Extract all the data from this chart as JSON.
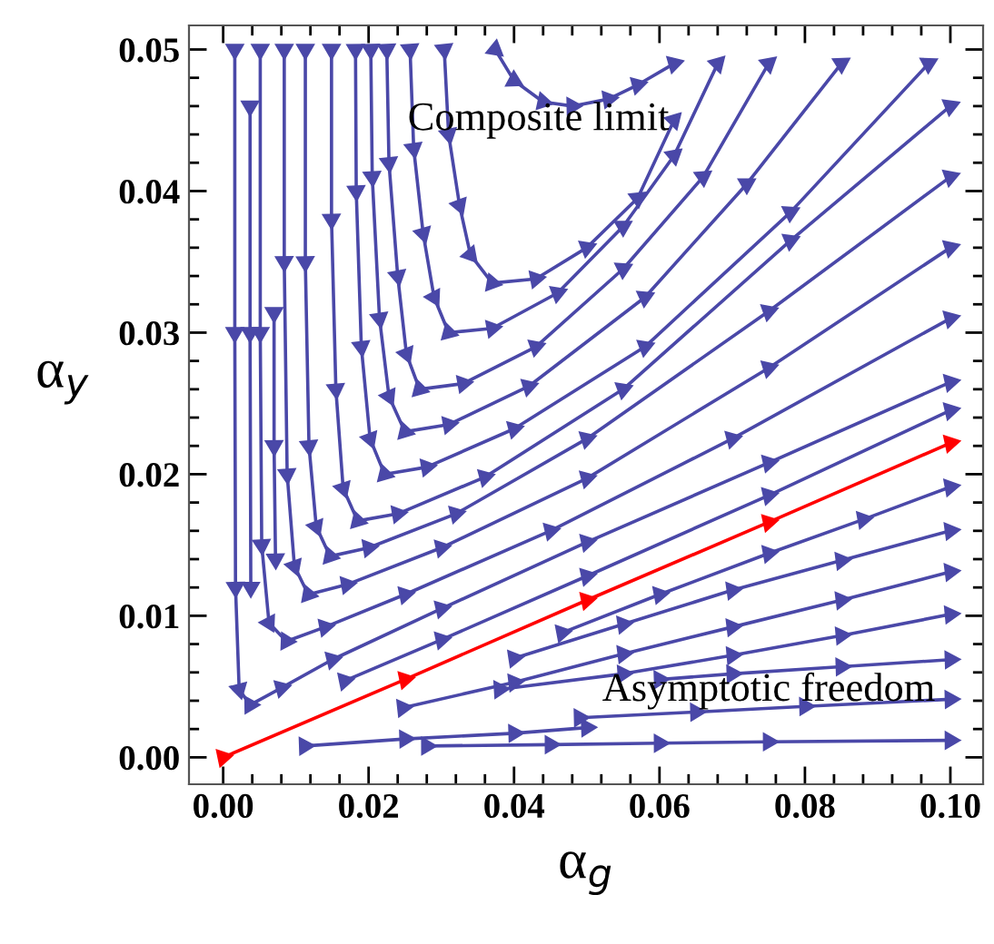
{
  "chart_data": {
    "type": "line",
    "xlabel": "α$_{g}$",
    "ylabel": "α$_{y}$",
    "grid": false,
    "marker": "triangle",
    "xlim": [
      -0.0047,
      0.1045
    ],
    "ylim": [
      -0.0019,
      0.0517
    ],
    "xticks": [
      {
        "value": 0,
        "label": "0.00"
      },
      {
        "value": 0.004,
        "label": null
      },
      {
        "value": 0.008,
        "label": null
      },
      {
        "value": 0.012,
        "label": null
      },
      {
        "value": 0.016,
        "label": null
      },
      {
        "value": 0.02,
        "label": "0.02"
      },
      {
        "value": 0.024,
        "label": null
      },
      {
        "value": 0.028,
        "label": null
      },
      {
        "value": 0.032,
        "label": null
      },
      {
        "value": 0.036,
        "label": null
      },
      {
        "value": 0.04,
        "label": "0.04"
      },
      {
        "value": 0.044,
        "label": null
      },
      {
        "value": 0.048,
        "label": null
      },
      {
        "value": 0.052,
        "label": null
      },
      {
        "value": 0.056,
        "label": null
      },
      {
        "value": 0.06,
        "label": "0.06"
      },
      {
        "value": 0.064,
        "label": null
      },
      {
        "value": 0.068,
        "label": null
      },
      {
        "value": 0.072,
        "label": null
      },
      {
        "value": 0.076,
        "label": null
      },
      {
        "value": 0.08,
        "label": "0.08"
      },
      {
        "value": 0.084,
        "label": null
      },
      {
        "value": 0.088,
        "label": null
      },
      {
        "value": 0.092,
        "label": null
      },
      {
        "value": 0.096,
        "label": null
      },
      {
        "value": 0.1,
        "label": "0.10"
      }
    ],
    "yticks": [
      {
        "value": 0,
        "label": "0.00"
      },
      {
        "value": 0.002,
        "label": null
      },
      {
        "value": 0.004,
        "label": null
      },
      {
        "value": 0.006,
        "label": null
      },
      {
        "value": 0.008,
        "label": null
      },
      {
        "value": 0.01,
        "label": "0.01"
      },
      {
        "value": 0.012,
        "label": null
      },
      {
        "value": 0.014,
        "label": null
      },
      {
        "value": 0.016,
        "label": null
      },
      {
        "value": 0.018,
        "label": null
      },
      {
        "value": 0.02,
        "label": "0.02"
      },
      {
        "value": 0.022,
        "label": null
      },
      {
        "value": 0.024,
        "label": null
      },
      {
        "value": 0.026,
        "label": null
      },
      {
        "value": 0.028,
        "label": null
      },
      {
        "value": 0.03,
        "label": "0.03"
      },
      {
        "value": 0.032,
        "label": null
      },
      {
        "value": 0.034,
        "label": null
      },
      {
        "value": 0.036,
        "label": null
      },
      {
        "value": 0.038,
        "label": null
      },
      {
        "value": 0.04,
        "label": "0.04"
      },
      {
        "value": 0.042,
        "label": null
      },
      {
        "value": 0.044,
        "label": null
      },
      {
        "value": 0.046,
        "label": null
      },
      {
        "value": 0.048,
        "label": null
      },
      {
        "value": 0.05,
        "label": "0.05"
      }
    ],
    "annotations": [
      "Composite limit",
      "Asymptotic freedom"
    ],
    "series": [
      {
        "color": "#4a48a8",
        "x": [
          0.0016,
          0.0016,
          0.0017,
          0.0022,
          0.0037,
          0.008,
          0.015,
          0.03,
          0.05,
          0.075,
          0.1
        ],
        "values": [
          0.05,
          0.03,
          0.012,
          0.0048,
          0.0037,
          0.0049,
          0.0069,
          0.0105,
          0.0152,
          0.0208,
          0.0265
        ]
      },
      {
        "color": "#4a48a8",
        "x": [
          0.0037,
          0.0037,
          0.0038
        ],
        "values": [
          0.046,
          0.03,
          0.012
        ]
      },
      {
        "color": "#4a48a8",
        "x": [
          0.0051,
          0.0051,
          0.0053,
          0.0063,
          0.0087,
          0.014,
          0.025,
          0.045,
          0.07,
          0.1
        ],
        "values": [
          0.05,
          0.03,
          0.015,
          0.0095,
          0.0082,
          0.0092,
          0.0115,
          0.016,
          0.0225,
          0.031
        ]
      },
      {
        "color": "#4a48a8",
        "x": [
          0.007,
          0.007,
          0.0072
        ],
        "values": [
          0.0314,
          0.022,
          0.014
        ]
      },
      {
        "color": "#4a48a8",
        "x": [
          0.0084,
          0.0084,
          0.0088,
          0.0098,
          0.0117,
          0.017,
          0.03,
          0.05,
          0.075,
          0.1
        ],
        "values": [
          0.05,
          0.035,
          0.02,
          0.0135,
          0.0115,
          0.0122,
          0.0148,
          0.0197,
          0.0275,
          0.036
        ]
      },
      {
        "color": "#4a48a8",
        "x": [
          0.0113,
          0.0113,
          0.0118,
          0.0128,
          0.0147,
          0.02,
          0.032,
          0.05,
          0.075,
          0.1
        ],
        "values": [
          0.05,
          0.035,
          0.022,
          0.0163,
          0.0142,
          0.0148,
          0.0172,
          0.0225,
          0.0315,
          0.041
        ]
      },
      {
        "color": "#4a48a8",
        "x": [
          0.0149,
          0.0149,
          0.0155,
          0.0165,
          0.0185,
          0.024,
          0.036,
          0.055,
          0.078,
          0.1
        ],
        "values": [
          0.05,
          0.038,
          0.026,
          0.019,
          0.0167,
          0.0172,
          0.0198,
          0.026,
          0.0365,
          0.046
        ]
      },
      {
        "color": "#4a48a8",
        "x": [
          0.0182,
          0.0183,
          0.019,
          0.0202,
          0.0222,
          0.028,
          0.04,
          0.058,
          0.078,
          0.097
        ],
        "values": [
          0.05,
          0.04,
          0.029,
          0.0225,
          0.02,
          0.0205,
          0.0232,
          0.029,
          0.0385,
          0.049
        ]
      },
      {
        "color": "#4a48a8",
        "x": [
          0.0203,
          0.0205,
          0.0215,
          0.0228,
          0.025,
          0.031,
          0.042,
          0.058,
          0.072,
          0.085
        ],
        "values": [
          0.05,
          0.041,
          0.031,
          0.0255,
          0.023,
          0.0235,
          0.0262,
          0.0325,
          0.0405,
          0.049
        ]
      },
      {
        "color": "#4a48a8",
        "x": [
          0.0225,
          0.0228,
          0.024,
          0.0252,
          0.027,
          0.033,
          0.043,
          0.055,
          0.066,
          0.075
        ],
        "values": [
          0.05,
          0.042,
          0.034,
          0.0285,
          0.026,
          0.0264,
          0.029,
          0.0345,
          0.041,
          0.049
        ]
      },
      {
        "color": "#4a48a8",
        "x": [
          0.0257,
          0.0262,
          0.0275,
          0.029,
          0.031,
          0.037,
          0.046,
          0.055,
          0.062,
          0.068
        ],
        "values": [
          0.05,
          0.043,
          0.037,
          0.0325,
          0.03,
          0.0303,
          0.0328,
          0.0375,
          0.0425,
          0.049
        ]
      },
      {
        "color": "#4a48a8",
        "x": [
          0.0304,
          0.031,
          0.0325,
          0.034,
          0.037,
          0.043,
          0.05,
          0.057,
          0.062
        ],
        "values": [
          0.05,
          0.044,
          0.039,
          0.0355,
          0.0335,
          0.0338,
          0.036,
          0.0395,
          0.045
        ]
      },
      {
        "color": "#4a48a8",
        "x": [
          0.0374,
          0.04,
          0.044,
          0.048,
          0.053,
          0.057,
          0.062
        ],
        "values": [
          0.05,
          0.0478,
          0.0463,
          0.046,
          0.0465,
          0.0475,
          0.049
        ]
      },
      {
        "color": "#4a48a8",
        "x": [
          0.0167,
          0.03,
          0.05,
          0.075,
          0.1
        ],
        "values": [
          0.0054,
          0.0083,
          0.0128,
          0.0185,
          0.0245
        ]
      },
      {
        "color": "#ff0000",
        "x": [
          0,
          0.025,
          0.05,
          0.075,
          0.1
        ],
        "values": [
          0,
          0.0055,
          0.0111,
          0.0166,
          0.0222
        ]
      },
      {
        "color": "#4a48a8",
        "x": [
          0.0466,
          0.06,
          0.075,
          0.088,
          0.1
        ],
        "values": [
          0.0088,
          0.0115,
          0.0144,
          0.0168,
          0.0191
        ]
      },
      {
        "color": "#4a48a8",
        "x": [
          0.04,
          0.055,
          0.07,
          0.085,
          0.1
        ],
        "values": [
          0.007,
          0.0094,
          0.0118,
          0.0139,
          0.016
        ]
      },
      {
        "color": "#4a48a8",
        "x": [
          0.0247,
          0.04,
          0.055,
          0.07,
          0.085,
          0.1
        ],
        "values": [
          0.0035,
          0.0053,
          0.0073,
          0.0092,
          0.0111,
          0.0131
        ]
      },
      {
        "color": "#4a48a8",
        "x": [
          0.038,
          0.055,
          0.07,
          0.085,
          0.1
        ],
        "values": [
          0.0048,
          0.0059,
          0.0072,
          0.0086,
          0.0101
        ]
      },
      {
        "color": "#4a48a8",
        "x": [
          0.0112,
          0.025,
          0.04,
          0.05
        ],
        "values": [
          0.0008,
          0.0013,
          0.0017,
          0.0021
        ]
      },
      {
        "color": "#4a48a8",
        "x": [
          0.06,
          0.07,
          0.085,
          0.1
        ],
        "values": [
          0.0055,
          0.0059,
          0.0064,
          0.0069
        ]
      },
      {
        "color": "#4a48a8",
        "x": [
          0.049,
          0.065,
          0.08,
          0.1
        ],
        "values": [
          0.0028,
          0.0032,
          0.0036,
          0.0041
        ]
      },
      {
        "color": "#4a48a8",
        "x": [
          0.028,
          0.045,
          0.06,
          0.075,
          0.1
        ],
        "values": [
          0.0008,
          0.0009,
          0.001,
          0.0011,
          0.0012
        ]
      }
    ]
  }
}
